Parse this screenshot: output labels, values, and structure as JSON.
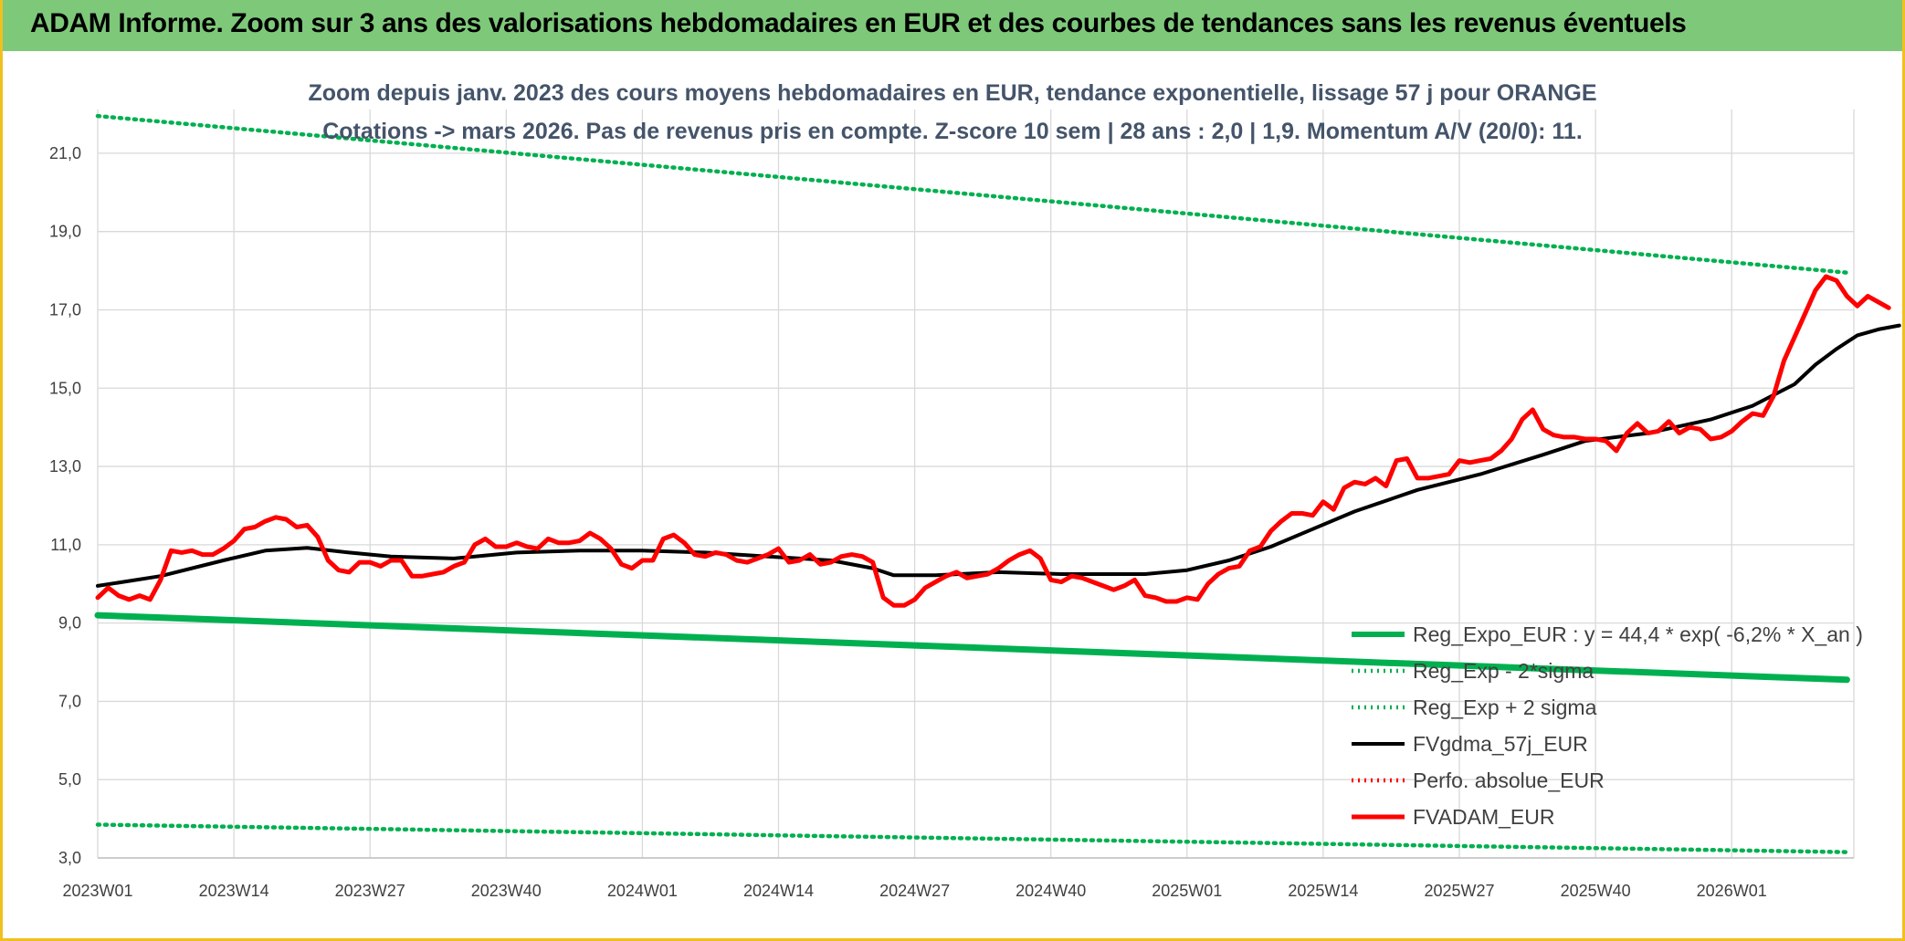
{
  "banner": {
    "title": "ADAM Informe. Zoom sur 3 ans des valorisations hebdomadaires en EUR et des courbes de tendances sans les revenus éventuels"
  },
  "colors": {
    "banner_bg": "#7ec87a",
    "frame_border": "#f0c020",
    "trend_green": "#00b050",
    "price_red": "#ff0000",
    "smooth_black": "#000000",
    "grid": "#d9d9d9"
  },
  "chart_data": {
    "type": "line",
    "title_lines": [
      "Zoom depuis janv. 2023 des cours moyens hebdomadaires en EUR, tendance exponentielle, lissage 57 j pour ORANGE",
      "Cotations -> mars 2026. Pas de revenus pris en compte. Z-score 10 sem | 28 ans : 2,0 | 1,9. Momentum A/V (20/0): 11."
    ],
    "x_tick_labels": [
      "2023W01",
      "2023W14",
      "2023W27",
      "2023W40",
      "2024W01",
      "2024W14",
      "2024W27",
      "2024W40",
      "2025W01",
      "2025W14",
      "2025W27",
      "2025W40",
      "2026W01"
    ],
    "y_tick_labels": [
      "3,0",
      "5,0",
      "7,0",
      "9,0",
      "11,0",
      "13,0",
      "15,0",
      "17,0",
      "19,0",
      "21,0"
    ],
    "ylim": [
      3,
      22
    ],
    "grid": true,
    "legend_position": "bottom-right",
    "series": [
      {
        "name": "Reg_Expo_EUR : y = 44,4 * exp( -6,2% *  X_an )",
        "style": "solid",
        "color": "#00b050",
        "points": [
          [
            0,
            9.2
          ],
          [
            167,
            7.55
          ]
        ]
      },
      {
        "name": "Reg_Exp - 2*sigma",
        "style": "dotted",
        "color": "#00b050",
        "points": [
          [
            0,
            3.85
          ],
          [
            167,
            3.15
          ]
        ]
      },
      {
        "name": "Reg_Exp + 2 sigma",
        "style": "dotted",
        "color": "#00b050",
        "points": [
          [
            0,
            21.95
          ],
          [
            167,
            17.95
          ]
        ]
      },
      {
        "name": "FVgdma_57j_EUR",
        "style": "solid",
        "color": "#000000",
        "points": [
          [
            0,
            9.95
          ],
          [
            6,
            10.2
          ],
          [
            12,
            10.6
          ],
          [
            16,
            10.85
          ],
          [
            20,
            10.92
          ],
          [
            24,
            10.8
          ],
          [
            28,
            10.7
          ],
          [
            34,
            10.65
          ],
          [
            40,
            10.8
          ],
          [
            46,
            10.85
          ],
          [
            52,
            10.85
          ],
          [
            58,
            10.8
          ],
          [
            64,
            10.7
          ],
          [
            70,
            10.6
          ],
          [
            74,
            10.4
          ],
          [
            76,
            10.22
          ],
          [
            80,
            10.22
          ],
          [
            86,
            10.3
          ],
          [
            92,
            10.25
          ],
          [
            100,
            10.25
          ],
          [
            104,
            10.35
          ],
          [
            108,
            10.6
          ],
          [
            112,
            10.95
          ],
          [
            116,
            11.4
          ],
          [
            120,
            11.85
          ],
          [
            126,
            12.4
          ],
          [
            132,
            12.8
          ],
          [
            138,
            13.3
          ],
          [
            142,
            13.65
          ],
          [
            148,
            13.85
          ],
          [
            154,
            14.2
          ],
          [
            158,
            14.55
          ],
          [
            162,
            15.1
          ],
          [
            164,
            15.6
          ],
          [
            166,
            16.0
          ],
          [
            168,
            16.35
          ],
          [
            170,
            16.5
          ],
          [
            172,
            16.6
          ]
        ]
      },
      {
        "name": "Perfo. absolue_EUR",
        "style": "dotted",
        "color": "#ff0000",
        "points": []
      },
      {
        "name": "FVADAM_EUR",
        "style": "solid",
        "color": "#ff0000",
        "points": [
          [
            0,
            9.65
          ],
          [
            1,
            9.9
          ],
          [
            2,
            9.7
          ],
          [
            3,
            9.6
          ],
          [
            4,
            9.7
          ],
          [
            5,
            9.6
          ],
          [
            6,
            10.1
          ],
          [
            7,
            10.85
          ],
          [
            8,
            10.8
          ],
          [
            9,
            10.85
          ],
          [
            10,
            10.75
          ],
          [
            11,
            10.75
          ],
          [
            12,
            10.9
          ],
          [
            13,
            11.1
          ],
          [
            14,
            11.4
          ],
          [
            15,
            11.45
          ],
          [
            16,
            11.6
          ],
          [
            17,
            11.7
          ],
          [
            18,
            11.65
          ],
          [
            19,
            11.45
          ],
          [
            20,
            11.5
          ],
          [
            21,
            11.2
          ],
          [
            22,
            10.6
          ],
          [
            23,
            10.35
          ],
          [
            24,
            10.3
          ],
          [
            25,
            10.55
          ],
          [
            26,
            10.55
          ],
          [
            27,
            10.45
          ],
          [
            28,
            10.6
          ],
          [
            29,
            10.6
          ],
          [
            30,
            10.2
          ],
          [
            31,
            10.2
          ],
          [
            32,
            10.25
          ],
          [
            33,
            10.3
          ],
          [
            34,
            10.45
          ],
          [
            35,
            10.55
          ],
          [
            36,
            11.0
          ],
          [
            37,
            11.15
          ],
          [
            38,
            10.95
          ],
          [
            39,
            10.95
          ],
          [
            40,
            11.05
          ],
          [
            41,
            10.95
          ],
          [
            42,
            10.9
          ],
          [
            43,
            11.15
          ],
          [
            44,
            11.05
          ],
          [
            45,
            11.05
          ],
          [
            46,
            11.1
          ],
          [
            47,
            11.3
          ],
          [
            48,
            11.15
          ],
          [
            49,
            10.9
          ],
          [
            50,
            10.5
          ],
          [
            51,
            10.4
          ],
          [
            52,
            10.6
          ],
          [
            53,
            10.6
          ],
          [
            54,
            11.15
          ],
          [
            55,
            11.25
          ],
          [
            56,
            11.05
          ],
          [
            57,
            10.75
          ],
          [
            58,
            10.7
          ],
          [
            59,
            10.8
          ],
          [
            60,
            10.75
          ],
          [
            61,
            10.6
          ],
          [
            62,
            10.55
          ],
          [
            63,
            10.65
          ],
          [
            64,
            10.75
          ],
          [
            65,
            10.9
          ],
          [
            66,
            10.55
          ],
          [
            67,
            10.6
          ],
          [
            68,
            10.75
          ],
          [
            69,
            10.5
          ],
          [
            70,
            10.55
          ],
          [
            71,
            10.7
          ],
          [
            72,
            10.75
          ],
          [
            73,
            10.7
          ],
          [
            74,
            10.55
          ],
          [
            75,
            9.65
          ],
          [
            76,
            9.45
          ],
          [
            77,
            9.45
          ],
          [
            78,
            9.6
          ],
          [
            79,
            9.9
          ],
          [
            80,
            10.05
          ],
          [
            81,
            10.2
          ],
          [
            82,
            10.3
          ],
          [
            83,
            10.15
          ],
          [
            84,
            10.2
          ],
          [
            85,
            10.25
          ],
          [
            86,
            10.4
          ],
          [
            87,
            10.6
          ],
          [
            88,
            10.75
          ],
          [
            89,
            10.85
          ],
          [
            90,
            10.65
          ],
          [
            91,
            10.1
          ],
          [
            92,
            10.05
          ],
          [
            93,
            10.2
          ],
          [
            94,
            10.15
          ],
          [
            95,
            10.05
          ],
          [
            96,
            9.95
          ],
          [
            97,
            9.85
          ],
          [
            98,
            9.95
          ],
          [
            99,
            10.1
          ],
          [
            100,
            9.7
          ],
          [
            101,
            9.65
          ],
          [
            102,
            9.55
          ],
          [
            103,
            9.55
          ],
          [
            104,
            9.65
          ],
          [
            105,
            9.6
          ],
          [
            106,
            10.0
          ],
          [
            107,
            10.25
          ],
          [
            108,
            10.4
          ],
          [
            109,
            10.45
          ],
          [
            110,
            10.85
          ],
          [
            111,
            10.95
          ],
          [
            112,
            11.35
          ],
          [
            113,
            11.6
          ],
          [
            114,
            11.8
          ],
          [
            115,
            11.8
          ],
          [
            116,
            11.75
          ],
          [
            117,
            12.1
          ],
          [
            118,
            11.9
          ],
          [
            119,
            12.45
          ],
          [
            120,
            12.6
          ],
          [
            121,
            12.55
          ],
          [
            122,
            12.7
          ],
          [
            123,
            12.5
          ],
          [
            124,
            13.15
          ],
          [
            125,
            13.2
          ],
          [
            126,
            12.7
          ],
          [
            127,
            12.7
          ],
          [
            128,
            12.75
          ],
          [
            129,
            12.8
          ],
          [
            130,
            13.15
          ],
          [
            131,
            13.1
          ],
          [
            132,
            13.15
          ],
          [
            133,
            13.2
          ],
          [
            134,
            13.4
          ],
          [
            135,
            13.7
          ],
          [
            136,
            14.2
          ],
          [
            137,
            14.45
          ],
          [
            138,
            13.95
          ],
          [
            139,
            13.8
          ],
          [
            140,
            13.75
          ],
          [
            141,
            13.75
          ],
          [
            142,
            13.7
          ],
          [
            143,
            13.7
          ],
          [
            144,
            13.65
          ],
          [
            145,
            13.4
          ],
          [
            146,
            13.85
          ],
          [
            147,
            14.1
          ],
          [
            148,
            13.85
          ],
          [
            149,
            13.9
          ],
          [
            150,
            14.15
          ],
          [
            151,
            13.85
          ],
          [
            152,
            14.0
          ],
          [
            153,
            13.95
          ],
          [
            154,
            13.7
          ],
          [
            155,
            13.75
          ],
          [
            156,
            13.9
          ],
          [
            157,
            14.15
          ],
          [
            158,
            14.35
          ],
          [
            159,
            14.3
          ],
          [
            160,
            14.8
          ],
          [
            161,
            15.7
          ],
          [
            162,
            16.3
          ],
          [
            163,
            16.9
          ],
          [
            164,
            17.5
          ],
          [
            165,
            17.85
          ],
          [
            166,
            17.75
          ],
          [
            167,
            17.35
          ],
          [
            168,
            17.1
          ],
          [
            169,
            17.35
          ],
          [
            170,
            17.2
          ],
          [
            171,
            17.05
          ]
        ]
      }
    ]
  }
}
